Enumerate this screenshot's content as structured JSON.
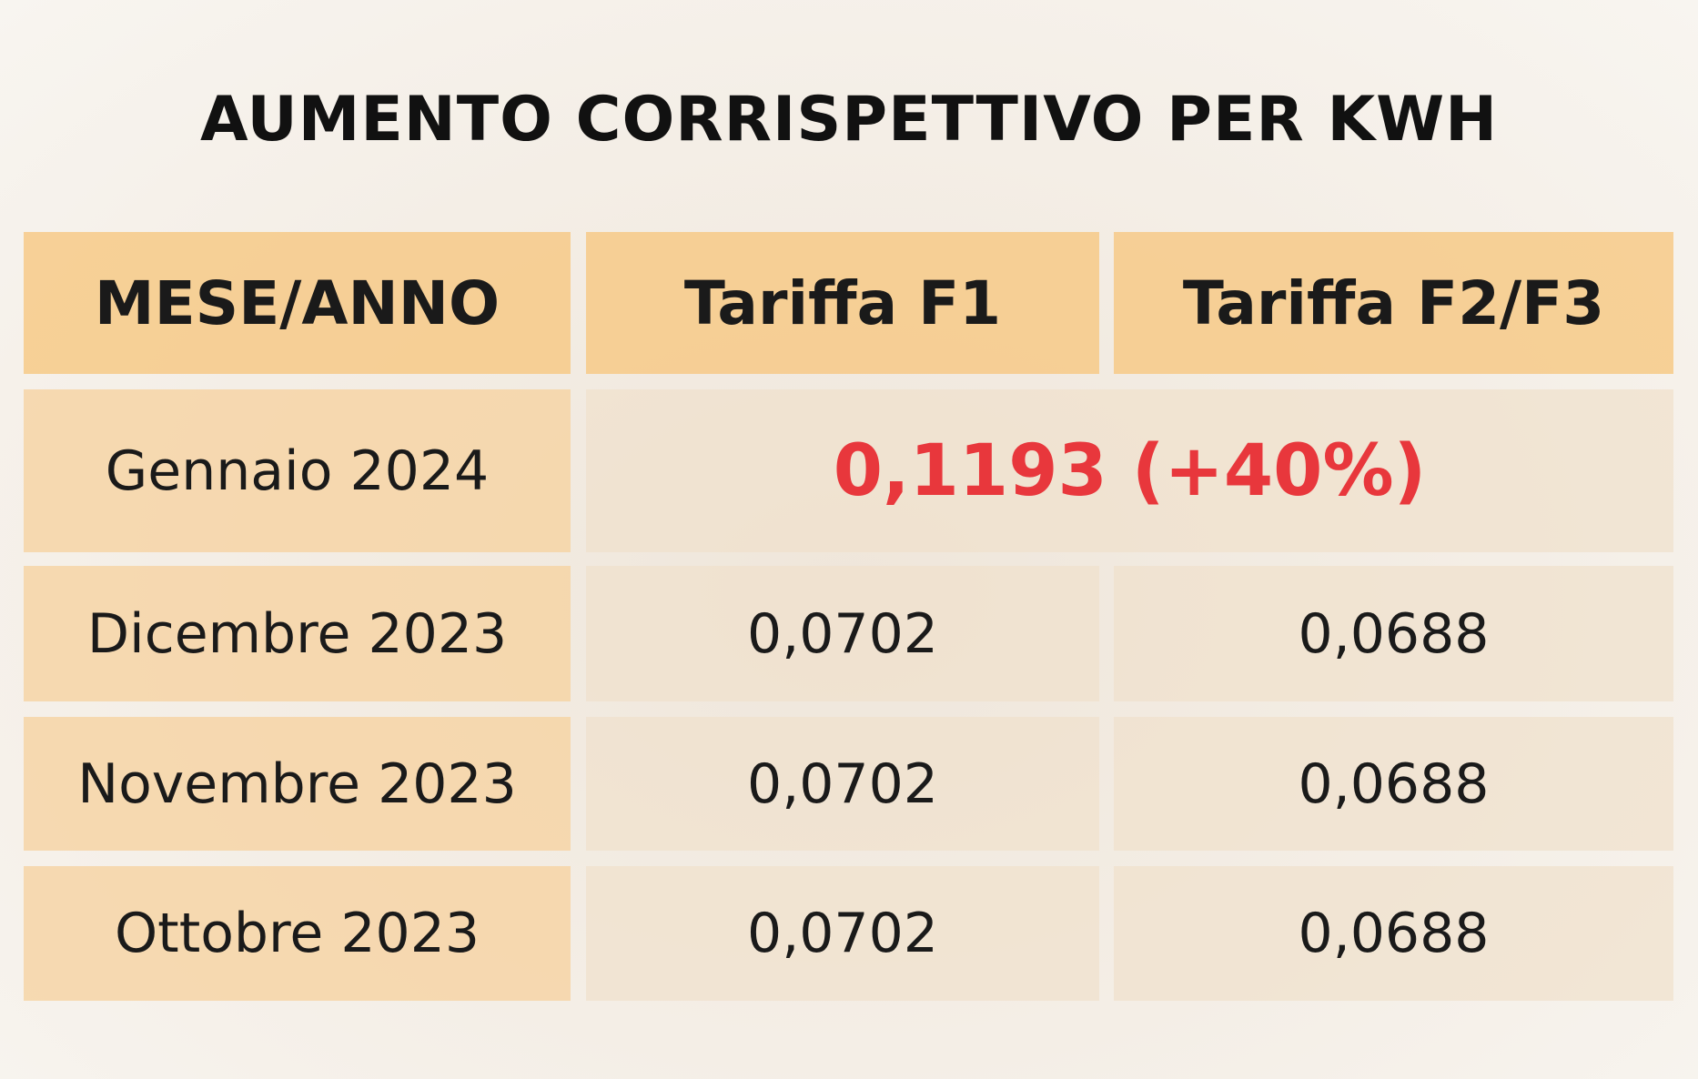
{
  "title": "AUMENTO CORRISPETTIVO PER KWH",
  "table": {
    "header": [
      "MESE/ANNO",
      "Tariffa F1",
      "Tariffa F2/F3"
    ],
    "rows": [
      [
        "Gennaio 2024",
        "0,1193 (+40%)"
      ],
      [
        "Dicembre 2023",
        "0,0702",
        "0,0688"
      ],
      [
        "Novembre 2023",
        "0,0702",
        "0,0688"
      ],
      [
        "Ottobre 2023",
        "0,0702",
        "0,0688"
      ]
    ]
  }
}
